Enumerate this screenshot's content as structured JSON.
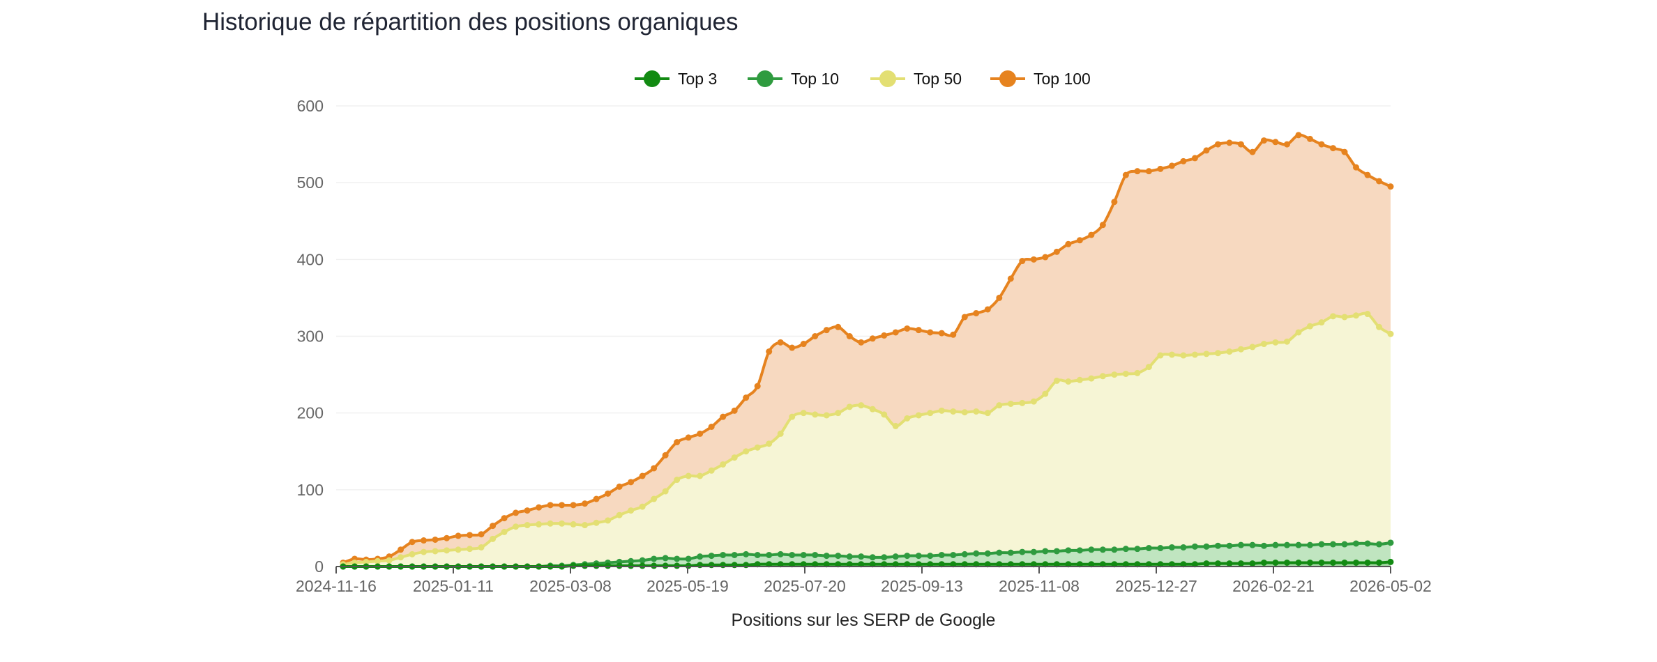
{
  "title": "Historique de répartition des positions organiques",
  "chart_data": {
    "type": "area",
    "stacked": false,
    "xlabel": "Positions sur les SERP de Google",
    "ylabel": "",
    "ylim": [
      0,
      600
    ],
    "yticks": [
      0,
      100,
      200,
      300,
      400,
      500,
      600
    ],
    "xticks": [
      "2024-11-16",
      "2025-01-11",
      "2025-03-08",
      "2025-05-19",
      "2025-07-20",
      "2025-09-13",
      "2025-11-08",
      "2025-12-27",
      "2026-02-21",
      "2026-05-02"
    ],
    "x_positions_per_tick": 10,
    "n_points": 92,
    "legend_position": "top",
    "grid": true,
    "series": [
      {
        "name": "Top 3",
        "color": "#128a12",
        "fill": "#9ed39e",
        "values": [
          0,
          0,
          0,
          0,
          0,
          0,
          0,
          0,
          0,
          0,
          0,
          0,
          0,
          0,
          0,
          0,
          0,
          0,
          0,
          0,
          1,
          1,
          1,
          1,
          1,
          1,
          1,
          1,
          1,
          1,
          1,
          2,
          2,
          2,
          2,
          2,
          3,
          3,
          3,
          3,
          3,
          3,
          3,
          3,
          3,
          3,
          3,
          3,
          3,
          3,
          3,
          3,
          3,
          3,
          3,
          3,
          3,
          3,
          3,
          3,
          3,
          3,
          3,
          3,
          3,
          3,
          3,
          3,
          3,
          3,
          3,
          3,
          3,
          3,
          3,
          4,
          4,
          4,
          4,
          4,
          5,
          5,
          5,
          5,
          5,
          5,
          5,
          5,
          5,
          5,
          5,
          6
        ]
      },
      {
        "name": "Top 10",
        "color": "#2f9b3f",
        "fill": "#c0e5c0",
        "values": [
          0,
          0,
          0,
          0,
          0,
          0,
          0,
          0,
          0,
          0,
          0,
          0,
          0,
          0,
          0,
          0,
          0,
          0,
          1,
          1,
          2,
          3,
          4,
          5,
          6,
          7,
          8,
          10,
          11,
          10,
          10,
          13,
          14,
          15,
          15,
          16,
          15,
          15,
          16,
          15,
          15,
          15,
          14,
          14,
          13,
          13,
          12,
          12,
          13,
          14,
          14,
          14,
          15,
          15,
          16,
          17,
          17,
          18,
          18,
          19,
          19,
          20,
          20,
          21,
          21,
          22,
          22,
          22,
          23,
          23,
          24,
          24,
          25,
          25,
          26,
          26,
          27,
          27,
          28,
          28,
          27,
          28,
          28,
          28,
          28,
          29,
          29,
          29,
          30,
          30,
          29,
          31
        ]
      },
      {
        "name": "Top 50",
        "color": "#e3df73",
        "fill": "#f6f5d5",
        "values": [
          3,
          5,
          6,
          7,
          8,
          12,
          16,
          19,
          20,
          21,
          22,
          23,
          25,
          36,
          45,
          52,
          54,
          55,
          56,
          56,
          55,
          54,
          57,
          60,
          67,
          73,
          78,
          88,
          98,
          113,
          118,
          118,
          125,
          133,
          142,
          150,
          155,
          160,
          173,
          195,
          200,
          198,
          197,
          200,
          208,
          210,
          205,
          198,
          183,
          193,
          197,
          200,
          203,
          202,
          201,
          202,
          200,
          210,
          212,
          213,
          215,
          225,
          242,
          241,
          243,
          245,
          248,
          250,
          251,
          252,
          260,
          275,
          276,
          275,
          276,
          277,
          278,
          280,
          283,
          286,
          290,
          292,
          293,
          305,
          313,
          318,
          326,
          325,
          327,
          329,
          312,
          303
        ]
      },
      {
        "name": "Top 100",
        "color": "#e6831f",
        "fill": "#f7d9c0",
        "values": [
          5,
          10,
          9,
          10,
          13,
          22,
          32,
          34,
          35,
          37,
          40,
          41,
          42,
          53,
          63,
          70,
          73,
          77,
          80,
          80,
          80,
          82,
          88,
          95,
          104,
          110,
          118,
          128,
          145,
          162,
          168,
          173,
          182,
          195,
          203,
          220,
          235,
          280,
          292,
          285,
          290,
          300,
          308,
          312,
          300,
          292,
          297,
          301,
          305,
          310,
          308,
          305,
          304,
          302,
          325,
          330,
          335,
          350,
          375,
          398,
          400,
          403,
          410,
          420,
          425,
          432,
          445,
          475,
          510,
          515,
          515,
          518,
          522,
          528,
          532,
          542,
          550,
          552,
          550,
          540,
          555,
          553,
          550,
          562,
          557,
          550,
          545,
          540,
          520,
          510,
          502,
          495
        ]
      }
    ]
  }
}
